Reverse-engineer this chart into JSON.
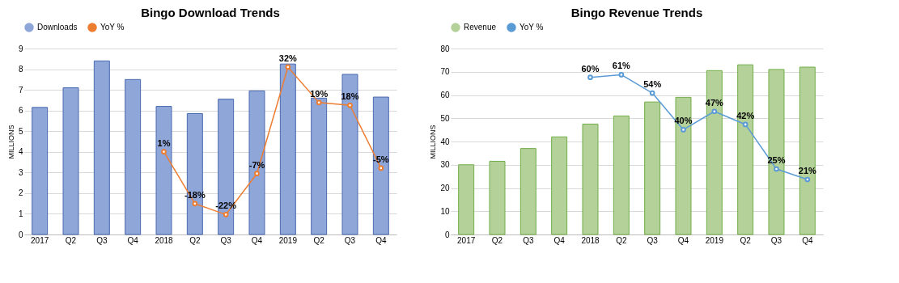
{
  "chart_data": [
    {
      "type": "bar",
      "title": "Bingo Download Trends",
      "ylabel": "MILLIONS",
      "categories": [
        "2017",
        "Q2",
        "Q3",
        "Q4",
        "2018",
        "Q2",
        "Q3",
        "Q4",
        "2019",
        "Q2",
        "Q3",
        "Q4"
      ],
      "series": [
        {
          "name": "Downloads",
          "color": "#8fa6d9",
          "values": [
            6.15,
            7.1,
            8.4,
            7.5,
            6.2,
            5.85,
            6.55,
            6.95,
            8.25,
            6.6,
            7.75,
            6.65
          ]
        },
        {
          "name": "YoY %",
          "type": "line",
          "axis": "y2",
          "color": "#ed7d31",
          "marker": "circle",
          "values": [
            null,
            null,
            null,
            null,
            1,
            -18,
            -22,
            -7,
            32,
            19,
            18,
            -5
          ],
          "value_labels": [
            null,
            null,
            null,
            null,
            "1%",
            "-18%",
            "-22%",
            "-7%",
            "32%",
            "19%",
            "18%",
            "-5%"
          ]
        }
      ],
      "ylim": [
        0,
        9
      ],
      "yticks": [
        0,
        1,
        2,
        3,
        4,
        5,
        6,
        7,
        8,
        9
      ],
      "y2lim": [
        -29.3,
        38.8
      ],
      "grid": "y",
      "legend": "top"
    },
    {
      "type": "bar",
      "title": "Bingo Revenue Trends",
      "ylabel": "MILLIONS",
      "categories": [
        "2017",
        "Q2",
        "Q3",
        "Q4",
        "2018",
        "Q2",
        "Q3",
        "Q4",
        "2019",
        "Q2",
        "Q3",
        "Q4"
      ],
      "series": [
        {
          "name": "Revenue",
          "color": "#b5d19a",
          "values": [
            30,
            31.5,
            37,
            42,
            47.5,
            51,
            57,
            59,
            70.5,
            73,
            71,
            72
          ]
        },
        {
          "name": "YoY %",
          "type": "line",
          "axis": "y2",
          "color": "#5b9bd5",
          "marker": "circle",
          "values": [
            null,
            null,
            null,
            null,
            60,
            61,
            54,
            40,
            47,
            42,
            25,
            21
          ],
          "value_labels": [
            null,
            null,
            null,
            null,
            "60%",
            "61%",
            "54%",
            "40%",
            "47%",
            "42%",
            "25%",
            "21%"
          ]
        }
      ],
      "ylim": [
        0,
        80
      ],
      "yticks": [
        0,
        10,
        20,
        30,
        40,
        50,
        60,
        70,
        80
      ],
      "y2lim": [
        0,
        71
      ],
      "grid": "y",
      "legend": "top"
    }
  ]
}
